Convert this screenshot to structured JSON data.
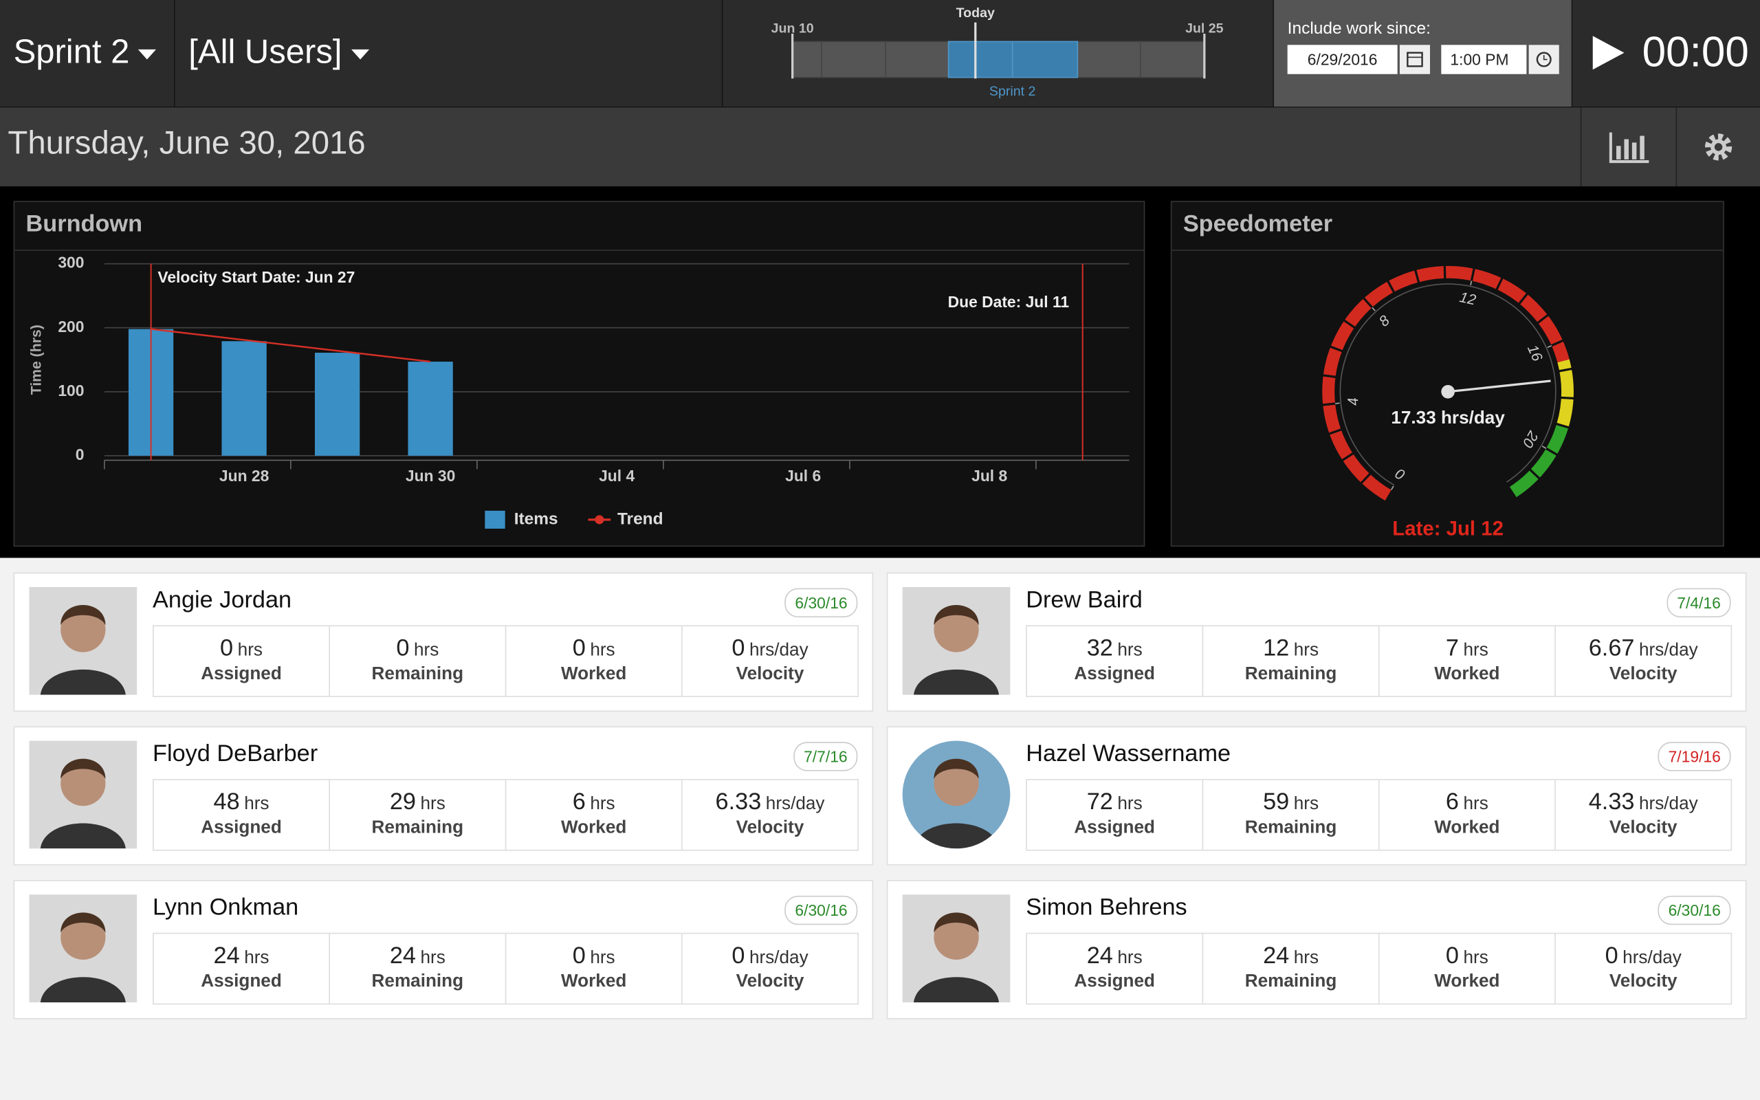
{
  "header": {
    "sprint_menu": "Sprint 2",
    "user_menu": "[All Users]",
    "timeline": {
      "today": "Today",
      "start": "Jun 10",
      "end": "Jul 25",
      "sprint": "Sprint 2"
    },
    "since_label": "Include work since:",
    "since_date": "6/29/2016",
    "since_time": "1:00 PM",
    "timer": "00:00"
  },
  "date": "Thursday, June 30, 2016",
  "chart_data": [
    {
      "type": "bar",
      "title": "Burndown",
      "y_label": "Time (hrs)",
      "categories": [
        null,
        "Jun 28",
        null,
        "Jun 30",
        null,
        "Jul 4",
        null,
        "Jul 6",
        null,
        "Jul 8",
        null
      ],
      "series": [
        {
          "name": "Items",
          "type": "bar",
          "color": "#3a8fc5",
          "values": [
            198,
            179,
            161,
            147,
            null,
            null,
            null,
            null,
            null,
            null,
            null
          ]
        },
        {
          "name": "Trend",
          "type": "line",
          "color": "#d63027",
          "values": [
            198,
            181,
            164,
            147,
            null,
            null,
            null,
            null,
            null,
            null,
            null
          ]
        }
      ],
      "ylim": [
        0,
        300
      ],
      "yticks": [
        0,
        100,
        200,
        300
      ],
      "grid": true,
      "annotations": [
        "Velocity Start Date: Jun 27",
        "Due Date: Jul 11"
      ],
      "legend": "bottom"
    },
    {
      "type": "gauge",
      "title": "Speedometer",
      "value": 17.33,
      "value_label": "17.33 hrs/day",
      "range": [
        0,
        22
      ],
      "ticks": [
        0,
        4,
        8,
        12,
        16,
        20
      ],
      "bands": [
        {
          "range": [
            0,
            16.67
          ],
          "color": "#d32a1f"
        },
        {
          "range": [
            16.67,
            19
          ],
          "color": "#e0d31f"
        },
        {
          "range": [
            19,
            22
          ],
          "color": "#2fa52b"
        }
      ],
      "note": "Late: Jul 12",
      "note_color": "#e0261c"
    }
  ],
  "people": [
    {
      "name": "Angie Jordan",
      "date": "6/30/16",
      "date_color": "#2a8a2a",
      "stats": [
        {
          "value": 0,
          "unit": "hrs",
          "label": "Assigned"
        },
        {
          "value": 0,
          "unit": "hrs",
          "label": "Remaining"
        },
        {
          "value": 0,
          "unit": "hrs",
          "label": "Worked"
        },
        {
          "value": 0,
          "unit": "hrs/day",
          "label": "Velocity"
        }
      ]
    },
    {
      "name": "Drew Baird",
      "date": "7/4/16",
      "date_color": "#2a8a2a",
      "stats": [
        {
          "value": 32,
          "unit": "hrs",
          "label": "Assigned"
        },
        {
          "value": 12,
          "unit": "hrs",
          "label": "Remaining"
        },
        {
          "value": 7,
          "unit": "hrs",
          "label": "Worked"
        },
        {
          "value": 6.67,
          "unit": "hrs/day",
          "label": "Velocity"
        }
      ]
    },
    {
      "name": "Floyd DeBarber",
      "date": "7/7/16",
      "date_color": "#2a8a2a",
      "stats": [
        {
          "value": 48,
          "unit": "hrs",
          "label": "Assigned"
        },
        {
          "value": 29,
          "unit": "hrs",
          "label": "Remaining"
        },
        {
          "value": 6,
          "unit": "hrs",
          "label": "Worked"
        },
        {
          "value": 6.33,
          "unit": "hrs/day",
          "label": "Velocity"
        }
      ]
    },
    {
      "name": "Hazel Wassername",
      "date": "7/19/16",
      "date_color": "#d42020",
      "stats": [
        {
          "value": 72,
          "unit": "hrs",
          "label": "Assigned"
        },
        {
          "value": 59,
          "unit": "hrs",
          "label": "Remaining"
        },
        {
          "value": 6,
          "unit": "hrs",
          "label": "Worked"
        },
        {
          "value": 4.33,
          "unit": "hrs/day",
          "label": "Velocity"
        }
      ]
    },
    {
      "name": "Lynn Onkman",
      "date": "6/30/16",
      "date_color": "#2a8a2a",
      "stats": [
        {
          "value": 24,
          "unit": "hrs",
          "label": "Assigned"
        },
        {
          "value": 24,
          "unit": "hrs",
          "label": "Remaining"
        },
        {
          "value": 0,
          "unit": "hrs",
          "label": "Worked"
        },
        {
          "value": 0,
          "unit": "hrs/day",
          "label": "Velocity"
        }
      ]
    },
    {
      "name": "Simon Behrens",
      "date": "6/30/16",
      "date_color": "#2a8a2a",
      "stats": [
        {
          "value": 24,
          "unit": "hrs",
          "label": "Assigned"
        },
        {
          "value": 24,
          "unit": "hrs",
          "label": "Remaining"
        },
        {
          "value": 0,
          "unit": "hrs",
          "label": "Worked"
        },
        {
          "value": 0,
          "unit": "hrs/day",
          "label": "Velocity"
        }
      ]
    }
  ]
}
